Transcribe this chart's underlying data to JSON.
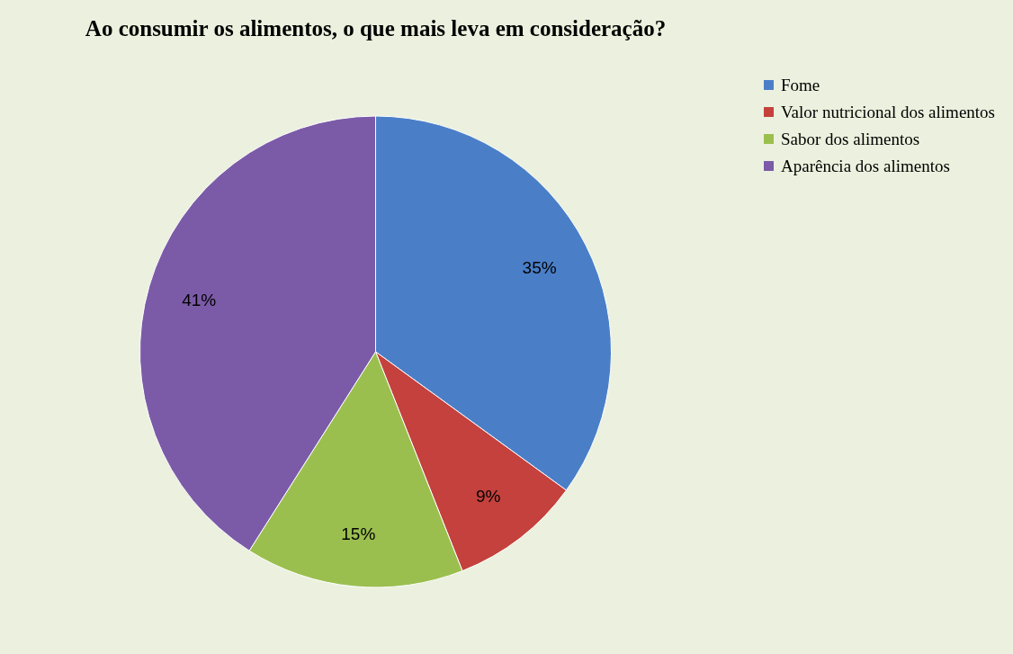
{
  "chart_data": {
    "type": "pie",
    "title": "Ao consumir os alimentos, o que mais leva em consideração?",
    "categories": [
      "Fome",
      "Valor nutricional dos alimentos",
      "Sabor dos alimentos",
      "Aparência dos alimentos"
    ],
    "values": [
      35,
      9,
      15,
      41
    ],
    "colors": [
      "#4a7fc8",
      "#c4413d",
      "#9bbf4f",
      "#7b5ba8"
    ],
    "value_labels": [
      "35%",
      "9%",
      "15%",
      "41%"
    ],
    "legend": "right"
  }
}
